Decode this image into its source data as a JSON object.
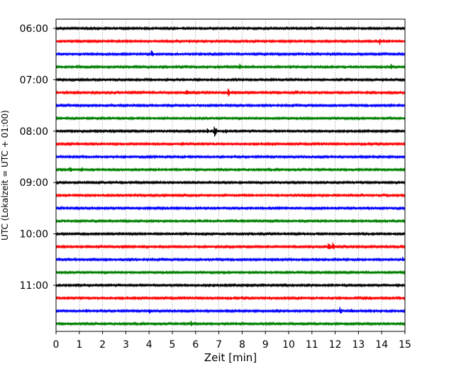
{
  "chart_data": {
    "type": "line",
    "plot_kind": "helicorder",
    "xlabel": "Zeit  [min]",
    "ylabel": "UTC (Lokalzeit = UTC + 01:00)",
    "xlim": [
      0,
      15
    ],
    "x_ticks": [
      0,
      1,
      2,
      3,
      4,
      5,
      6,
      7,
      8,
      9,
      10,
      11,
      12,
      13,
      14,
      15
    ],
    "x_grid": "dotted",
    "y_tick_labels": [
      "06:00",
      "07:00",
      "08:00",
      "09:00",
      "10:00",
      "11:00"
    ],
    "trace_minutes": 15,
    "trace_colors": [
      "#000000",
      "#ff0000",
      "#0000ff",
      "#008000"
    ],
    "traces": [
      {
        "start": "06:00",
        "events": [
          {
            "t": 1.2,
            "amp": 0.15
          },
          {
            "t": 7.3,
            "amp": 0.1
          }
        ]
      },
      {
        "start": "06:15",
        "events": [
          {
            "t": 5.3,
            "amp": 0.1
          },
          {
            "t": 13.9,
            "amp": 0.6
          },
          {
            "t": 14.3,
            "amp": 0.35
          }
        ]
      },
      {
        "start": "06:30",
        "events": [
          {
            "t": 0.3,
            "amp": 0.3
          },
          {
            "t": 1.2,
            "amp": 0.25
          },
          {
            "t": 4.1,
            "amp": 0.55
          }
        ]
      },
      {
        "start": "06:45",
        "events": [
          {
            "t": 7.9,
            "amp": 0.6
          },
          {
            "t": 14.4,
            "amp": 0.4
          }
        ]
      },
      {
        "start": "07:00",
        "events": [
          {
            "t": 2.0,
            "amp": 0.2
          },
          {
            "t": 3.2,
            "amp": 0.25
          },
          {
            "t": 3.9,
            "amp": 0.35
          },
          {
            "t": 7.3,
            "amp": 0.2
          }
        ]
      },
      {
        "start": "07:15",
        "events": [
          {
            "t": 5.6,
            "amp": 0.55
          },
          {
            "t": 7.4,
            "amp": 0.65
          },
          {
            "t": 10.3,
            "amp": 0.55
          }
        ]
      },
      {
        "start": "07:30",
        "events": [
          {
            "t": 6.1,
            "amp": 0.3
          },
          {
            "t": 7.0,
            "amp": 0.15
          }
        ]
      },
      {
        "start": "07:45",
        "events": [
          {
            "t": 0.3,
            "amp": 0.2
          },
          {
            "t": 14.3,
            "amp": 0.3
          }
        ]
      },
      {
        "start": "08:00",
        "events": [
          {
            "t": 6.5,
            "amp": 0.45
          },
          {
            "t": 6.8,
            "amp": 1.0
          },
          {
            "t": 7.3,
            "amp": 0.4
          }
        ]
      },
      {
        "start": "08:15",
        "events": [
          {
            "t": 6.8,
            "amp": 0.2
          }
        ]
      },
      {
        "start": "08:30",
        "events": [
          {
            "t": 9.8,
            "amp": 0.3
          }
        ]
      },
      {
        "start": "08:45",
        "events": [
          {
            "t": 0.6,
            "amp": 0.45
          },
          {
            "t": 1.1,
            "amp": 0.5
          },
          {
            "t": 1.6,
            "amp": 0.35
          }
        ]
      },
      {
        "start": "09:00",
        "events": [
          {
            "t": 2.5,
            "amp": 0.2
          },
          {
            "t": 3.3,
            "amp": 0.15
          }
        ]
      },
      {
        "start": "09:15",
        "events": [
          {
            "t": 10.0,
            "amp": 0.15
          }
        ]
      },
      {
        "start": "09:30",
        "events": [
          {
            "t": 9.2,
            "amp": 0.15
          }
        ]
      },
      {
        "start": "09:45",
        "events": [
          {
            "t": 0.3,
            "amp": 0.2
          },
          {
            "t": 7.6,
            "amp": 0.2
          }
        ]
      },
      {
        "start": "10:00",
        "events": [
          {
            "t": 3.9,
            "amp": 0.2
          },
          {
            "t": 7.1,
            "amp": 0.15
          },
          {
            "t": 10.0,
            "amp": 0.2
          }
        ]
      },
      {
        "start": "10:15",
        "events": [
          {
            "t": 11.7,
            "amp": 0.7
          },
          {
            "t": 11.9,
            "amp": 0.6
          },
          {
            "t": 12.4,
            "amp": 0.3
          }
        ]
      },
      {
        "start": "10:30",
        "events": [
          {
            "t": 14.9,
            "amp": 0.5
          }
        ]
      },
      {
        "start": "10:45",
        "events": [
          {
            "t": 4.4,
            "amp": 0.15
          },
          {
            "t": 9.5,
            "amp": 0.15
          }
        ]
      },
      {
        "start": "11:00",
        "events": [
          {
            "t": 3.9,
            "amp": 0.15
          }
        ]
      },
      {
        "start": "11:15",
        "events": [
          {
            "t": 9.9,
            "amp": 0.1
          }
        ]
      },
      {
        "start": "11:30",
        "events": [
          {
            "t": 1.3,
            "amp": 0.35
          },
          {
            "t": 4.0,
            "amp": 0.45
          },
          {
            "t": 12.2,
            "amp": 0.65
          },
          {
            "t": 12.7,
            "amp": 0.35
          }
        ]
      },
      {
        "start": "11:45",
        "events": [
          {
            "t": 5.8,
            "amp": 0.65
          },
          {
            "t": 6.2,
            "amp": 0.2
          }
        ]
      }
    ]
  }
}
